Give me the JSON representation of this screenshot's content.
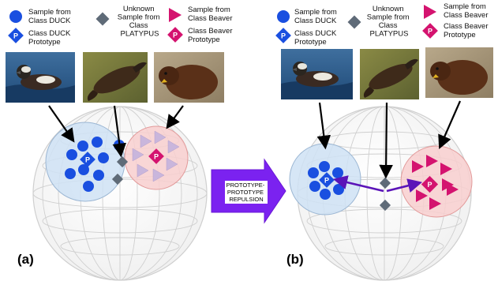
{
  "panels": [
    {
      "id": "a",
      "label": "(a)",
      "legend": {
        "duck_sample": [
          "Sample from",
          "Class DUCK"
        ],
        "duck_prototype": [
          "Class DUCK",
          "Prototype"
        ],
        "platypus_sample": [
          "Unknown",
          "Sample from",
          "Class",
          "PLATYPUS"
        ],
        "beaver_sample": [
          "Sample from",
          "Class Beaver"
        ],
        "beaver_prototype": [
          "Class Beaver",
          "Prototype"
        ]
      },
      "prototype_marker": "P"
    },
    {
      "id": "b",
      "label": "(b)",
      "legend": {
        "duck_sample": [
          "Sample from",
          "Class DUCK"
        ],
        "duck_prototype": [
          "Class DUCK",
          "Prototype"
        ],
        "platypus_sample": [
          "Unknown",
          "Sample from",
          "Class",
          "PLATYPUS"
        ],
        "beaver_sample": [
          "Sample from",
          "Class Beaver"
        ],
        "beaver_prototype": [
          "Class Beaver",
          "Prototype"
        ]
      },
      "prototype_marker": "P"
    }
  ],
  "transition_arrow": {
    "lines": [
      "PROTOTYPE-",
      "PROTOTYPE",
      "REPULSION"
    ]
  },
  "colors": {
    "duck": "#1a4fe0",
    "platypus": "#5f6b78",
    "beaver": "#d4136f",
    "beaver_light": "#c9b6dc",
    "duck_cluster": "#cfe2f5",
    "beaver_cluster": "#f8cfcf",
    "arrow": "#7b22f0",
    "repulsion": "#5b14b8"
  },
  "icons": [
    "duck-photo",
    "platypus-photo",
    "beaver-photo"
  ]
}
